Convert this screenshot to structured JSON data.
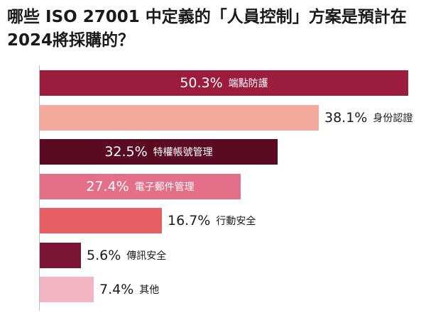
{
  "chart_data": {
    "type": "bar",
    "orientation": "horizontal",
    "title": "哪些 ISO 27001 中定義的「人員控制」方案是預計在2024將採購的？",
    "categories": [
      "端點防護",
      "身份認證",
      "特權帳號管理",
      "電子郵件管理",
      "行動安全",
      "傳訊安全",
      "其他"
    ],
    "values": [
      50.3,
      38.1,
      32.5,
      27.4,
      16.7,
      5.6,
      7.4
    ],
    "value_labels": [
      "50.3%",
      "38.1%",
      "32.5%",
      "27.4%",
      "16.7%",
      "5.6%",
      "7.4%"
    ],
    "label_inside": [
      true,
      false,
      true,
      true,
      false,
      false,
      false
    ],
    "colors": [
      "#9b1c3c",
      "#f3aa9c",
      "#5a0b22",
      "#e46f88",
      "#e85f63",
      "#7a1434",
      "#f3b4c4"
    ],
    "xlim": [
      0,
      50.3
    ],
    "grid": false,
    "legend": "none"
  }
}
